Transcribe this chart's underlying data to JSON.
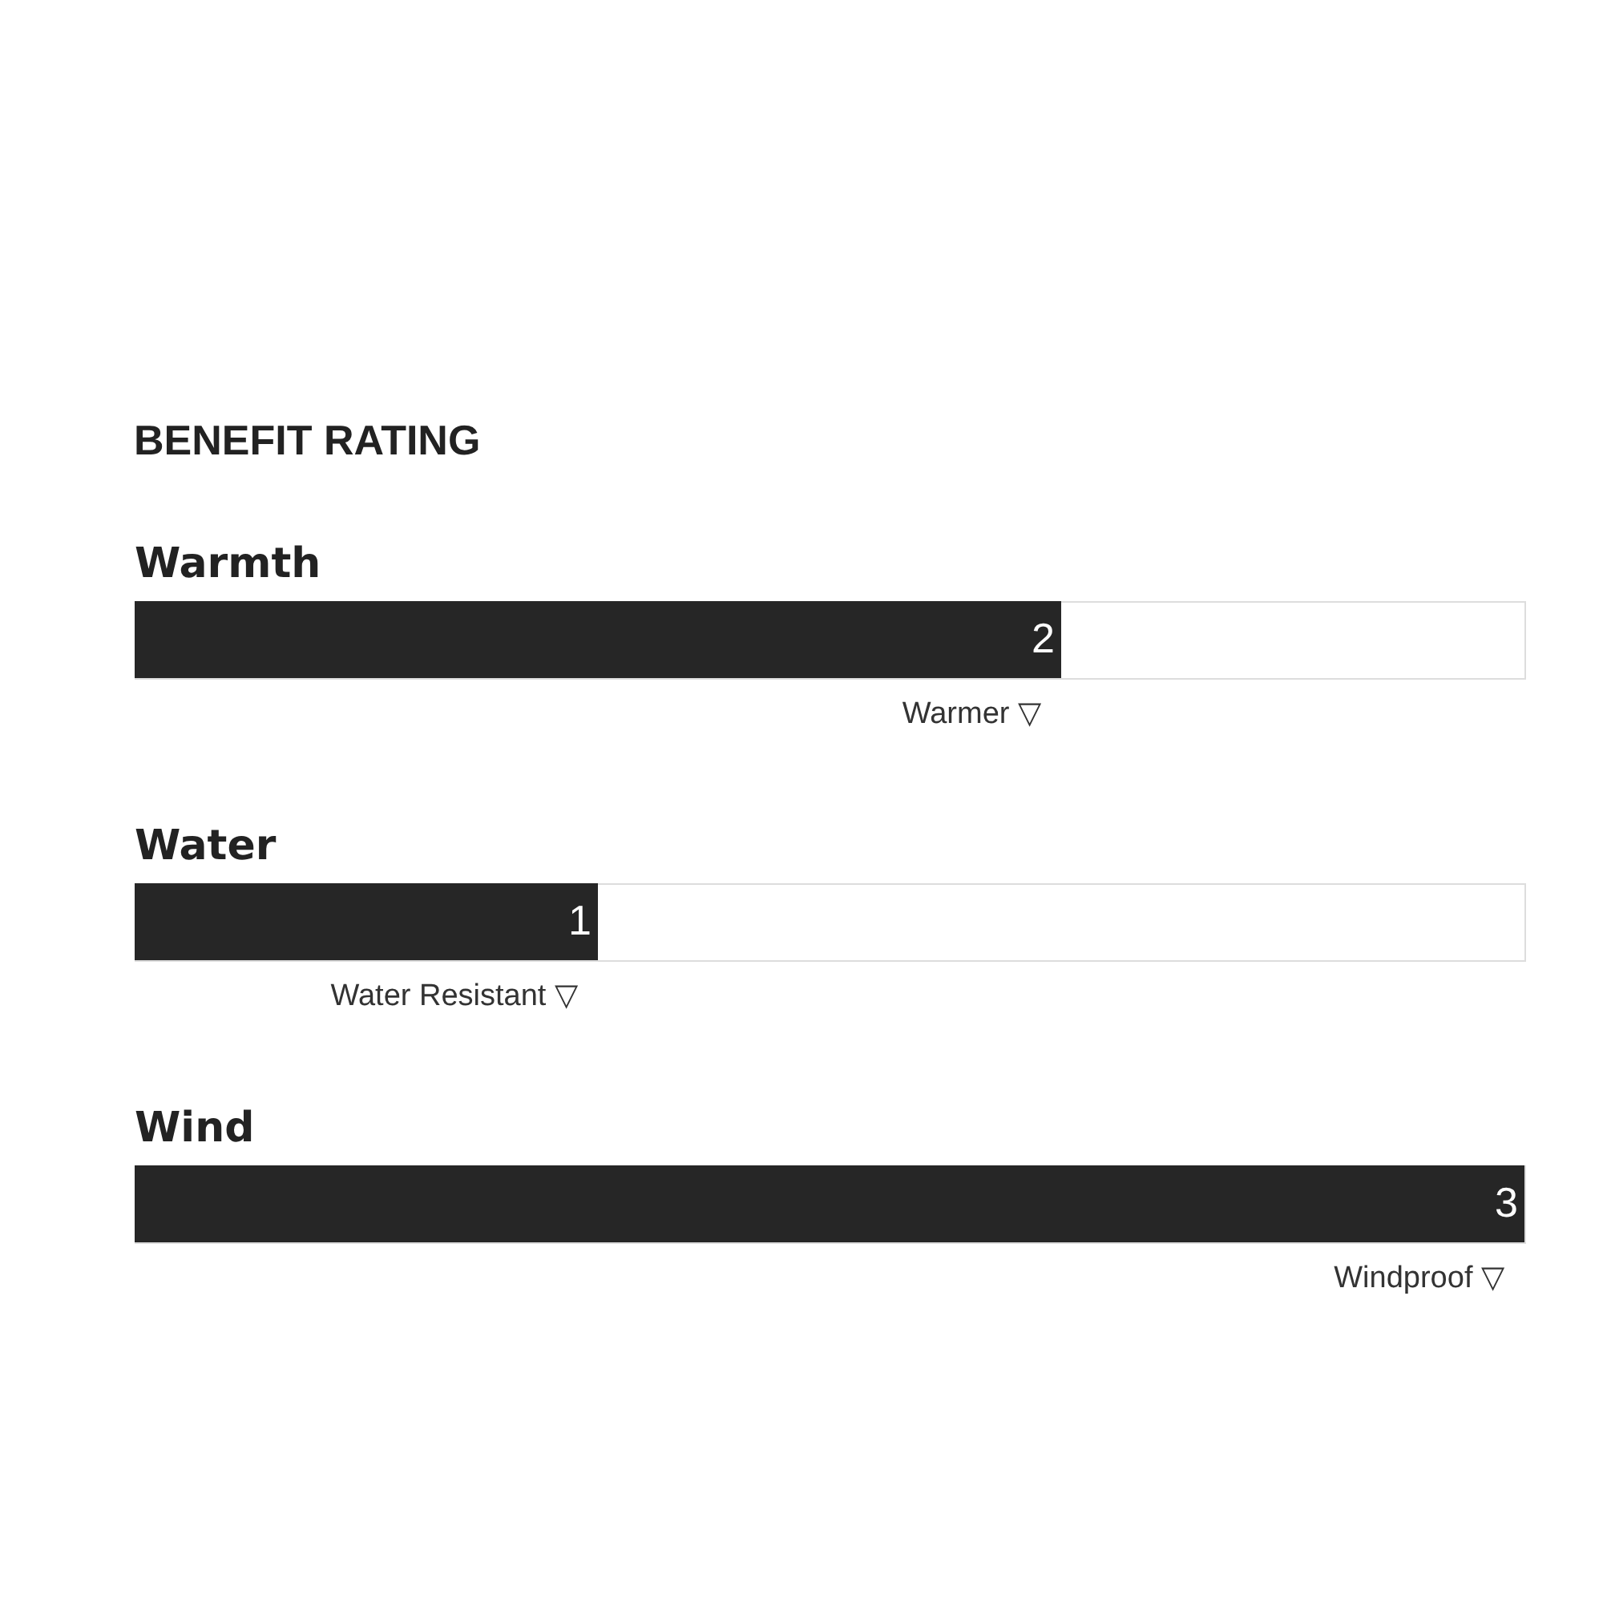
{
  "chart_data": {
    "type": "bar",
    "orientation": "horizontal",
    "title": "BENEFIT RATING",
    "categories": [
      "Warmth",
      "Water",
      "Wind"
    ],
    "values": [
      2,
      1,
      3
    ],
    "color": "#262626",
    "xlim": [
      0,
      3
    ],
    "tick_labels": "y",
    "data_labels": true,
    "annotations": [
      {
        "text": "Warmer ▽",
        "x": 2,
        "y": "Warmth"
      },
      {
        "text": "Water Resistant ▽",
        "x": 1,
        "y": "Water"
      },
      {
        "text": "Windproof ▽",
        "x": 3,
        "y": "Wind"
      }
    ]
  }
}
